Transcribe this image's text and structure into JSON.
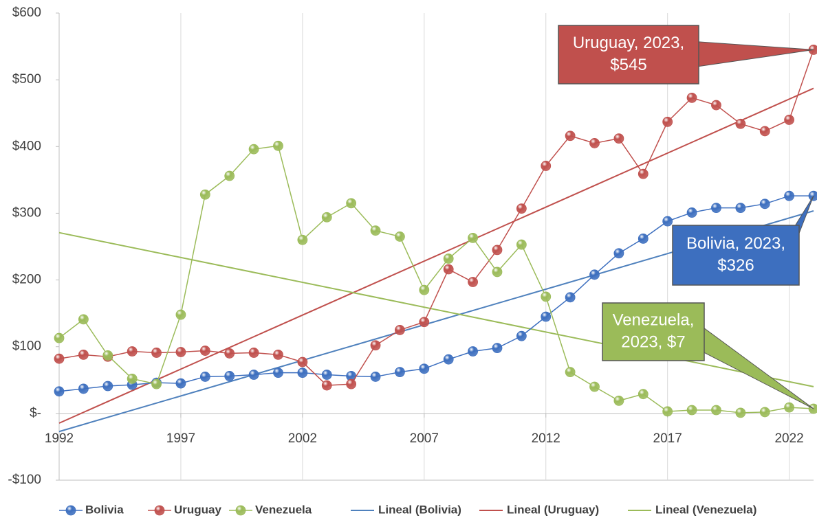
{
  "chart_data": {
    "type": "line",
    "x": [
      1992,
      1993,
      1994,
      1995,
      1996,
      1997,
      1998,
      1999,
      2000,
      2001,
      2002,
      2003,
      2004,
      2005,
      2006,
      2007,
      2008,
      2009,
      2010,
      2011,
      2012,
      2013,
      2014,
      2015,
      2016,
      2017,
      2018,
      2019,
      2020,
      2021,
      2022,
      2023
    ],
    "series": [
      {
        "name": "Bolivia",
        "color": "#3d6fbf",
        "values": [
          33,
          37,
          41,
          43,
          46,
          45,
          55,
          56,
          58,
          61,
          61,
          58,
          56,
          55,
          62,
          67,
          81,
          93,
          98,
          116,
          145,
          174,
          208,
          240,
          262,
          288,
          301,
          308,
          308,
          314,
          326,
          326
        ]
      },
      {
        "name": "Uruguay",
        "color": "#c0504d",
        "values": [
          82,
          88,
          85,
          93,
          91,
          92,
          94,
          90,
          91,
          88,
          77,
          42,
          44,
          102,
          125,
          137,
          216,
          197,
          245,
          307,
          371,
          416,
          405,
          412,
          359,
          437,
          473,
          462,
          434,
          423,
          440,
          545
        ]
      },
      {
        "name": "Venezuela",
        "color": "#9bbb59",
        "values": [
          113,
          141,
          87,
          52,
          44,
          148,
          328,
          356,
          396,
          401,
          260,
          294,
          315,
          274,
          265,
          185,
          232,
          263,
          212,
          253,
          175,
          62,
          40,
          19,
          29,
          3,
          5,
          5,
          1,
          2,
          9,
          7
        ]
      }
    ],
    "trendlines": [
      {
        "name": "Lineal (Bolivia)",
        "color": "#4f81bd"
      },
      {
        "name": "Lineal (Uruguay)",
        "color": "#c0504d"
      },
      {
        "name": "Lineal (Venezuela)",
        "color": "#9bbb59"
      }
    ],
    "annotations": [
      [
        "Uruguay, 2023,",
        "$545"
      ],
      [
        "Bolivia, 2023,",
        "$326"
      ],
      [
        "Venezuela,",
        "2023,  $7"
      ]
    ],
    "xlim": [
      1992,
      2023
    ],
    "xticks": [
      1992,
      1997,
      2002,
      2007,
      2012,
      2017,
      2022
    ],
    "ylim": [
      -100,
      600
    ],
    "yticks": [
      {
        "value": -100,
        "label": "-$100"
      },
      {
        "value": 0,
        "label": "$-"
      },
      {
        "value": 100,
        "label": "$100"
      },
      {
        "value": 200,
        "label": "$200"
      },
      {
        "value": 300,
        "label": "$300"
      },
      {
        "value": 400,
        "label": "$400"
      },
      {
        "value": 500,
        "label": "$500"
      },
      {
        "value": 600,
        "label": "$600"
      }
    ],
    "grid": "x"
  }
}
